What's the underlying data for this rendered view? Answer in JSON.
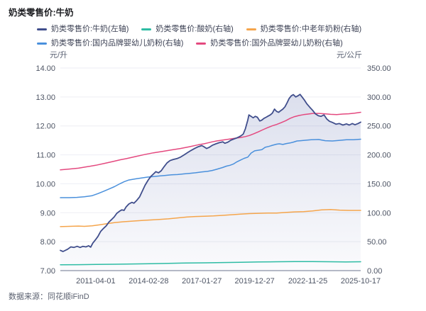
{
  "title": "奶类零售价:牛奶",
  "footer": {
    "source": "数据来源：同花顺iFinD"
  },
  "colors": {
    "grid_line": "#edeef4",
    "axis_line": "#b6bac6",
    "tick_text": "#4e5565",
    "legend_text": "#3e4356",
    "milk_navy": "#404e8c",
    "yogurt_teal": "#2ebca4",
    "elder_powder_orange": "#f5a54c",
    "domestic_infant_blue": "#4a90dc",
    "foreign_infant_pink": "#e4497f"
  },
  "chart_data": {
    "type": "line",
    "title": "奶类零售价:牛奶",
    "grid": true,
    "legend_position": "top",
    "area_gradient": [
      "rgba(97,112,176,0.25)",
      "rgba(97,112,176,0.03)"
    ],
    "left_axis": {
      "unit": "元/升",
      "min": 7,
      "max": 14,
      "tick_labels": [
        "14.00",
        "13.00",
        "12.00",
        "11.00",
        "10.00",
        "9.00",
        "8.00",
        "7.00"
      ]
    },
    "right_axis": {
      "unit": "元/公斤",
      "min": 0,
      "max": 350,
      "tick_labels": [
        "350.00",
        "300.00",
        "250.00",
        "200.00",
        "150.00",
        "100.00",
        "50.00",
        "0.00"
      ]
    },
    "x_axis": {
      "ticks": [
        {
          "label": "2011-04-01",
          "f": 0.118
        },
        {
          "label": "2014-02-28",
          "f": 0.294
        },
        {
          "label": "2017-01-27",
          "f": 0.471
        },
        {
          "label": "2019-12-27",
          "f": 0.647
        },
        {
          "label": "2022-11-25",
          "f": 0.824
        },
        {
          "label": "2025-10-17",
          "f": 1.0
        }
      ]
    },
    "series": [
      {
        "name": "奶类零售价:牛奶(左轴)",
        "axis": "left",
        "color": "#404e8c",
        "area": true,
        "points": [
          [
            0,
            7.7
          ],
          [
            0.009,
            7.66
          ],
          [
            0.024,
            7.74
          ],
          [
            0.035,
            7.82
          ],
          [
            0.045,
            7.8
          ],
          [
            0.056,
            7.84
          ],
          [
            0.066,
            7.8
          ],
          [
            0.075,
            7.84
          ],
          [
            0.085,
            7.82
          ],
          [
            0.094,
            7.86
          ],
          [
            0.101,
            7.81
          ],
          [
            0.108,
            7.95
          ],
          [
            0.118,
            8.08
          ],
          [
            0.125,
            8.18
          ],
          [
            0.134,
            8.35
          ],
          [
            0.144,
            8.46
          ],
          [
            0.153,
            8.55
          ],
          [
            0.162,
            8.68
          ],
          [
            0.172,
            8.78
          ],
          [
            0.179,
            8.85
          ],
          [
            0.188,
            8.98
          ],
          [
            0.198,
            9.06
          ],
          [
            0.205,
            9.1
          ],
          [
            0.212,
            9.08
          ],
          [
            0.219,
            9.2
          ],
          [
            0.228,
            9.3
          ],
          [
            0.238,
            9.36
          ],
          [
            0.245,
            9.33
          ],
          [
            0.254,
            9.42
          ],
          [
            0.264,
            9.55
          ],
          [
            0.273,
            9.75
          ],
          [
            0.282,
            9.95
          ],
          [
            0.292,
            10.12
          ],
          [
            0.301,
            10.25
          ],
          [
            0.311,
            10.35
          ],
          [
            0.318,
            10.42
          ],
          [
            0.327,
            10.38
          ],
          [
            0.336,
            10.45
          ],
          [
            0.346,
            10.6
          ],
          [
            0.355,
            10.72
          ],
          [
            0.365,
            10.8
          ],
          [
            0.376,
            10.84
          ],
          [
            0.388,
            10.87
          ],
          [
            0.4,
            10.92
          ],
          [
            0.412,
            11.0
          ],
          [
            0.424,
            11.08
          ],
          [
            0.435,
            11.15
          ],
          [
            0.447,
            11.22
          ],
          [
            0.459,
            11.28
          ],
          [
            0.471,
            11.32
          ],
          [
            0.478,
            11.28
          ],
          [
            0.487,
            11.22
          ],
          [
            0.496,
            11.26
          ],
          [
            0.506,
            11.33
          ],
          [
            0.518,
            11.38
          ],
          [
            0.529,
            11.42
          ],
          [
            0.541,
            11.45
          ],
          [
            0.548,
            11.4
          ],
          [
            0.558,
            11.44
          ],
          [
            0.567,
            11.5
          ],
          [
            0.576,
            11.54
          ],
          [
            0.586,
            11.58
          ],
          [
            0.595,
            11.62
          ],
          [
            0.602,
            11.66
          ],
          [
            0.609,
            11.72
          ],
          [
            0.616,
            11.9
          ],
          [
            0.624,
            12.2
          ],
          [
            0.628,
            12.38
          ],
          [
            0.635,
            12.33
          ],
          [
            0.642,
            12.28
          ],
          [
            0.649,
            12.33
          ],
          [
            0.656,
            12.3
          ],
          [
            0.664,
            12.17
          ],
          [
            0.671,
            12.2
          ],
          [
            0.678,
            12.26
          ],
          [
            0.685,
            12.3
          ],
          [
            0.692,
            12.34
          ],
          [
            0.699,
            12.38
          ],
          [
            0.706,
            12.44
          ],
          [
            0.713,
            12.58
          ],
          [
            0.72,
            12.5
          ],
          [
            0.727,
            12.47
          ],
          [
            0.734,
            12.53
          ],
          [
            0.741,
            12.58
          ],
          [
            0.748,
            12.66
          ],
          [
            0.755,
            12.8
          ],
          [
            0.762,
            12.95
          ],
          [
            0.769,
            13.04
          ],
          [
            0.776,
            13.08
          ],
          [
            0.784,
            13.0
          ],
          [
            0.791,
            13.04
          ],
          [
            0.798,
            13.09
          ],
          [
            0.805,
            13.0
          ],
          [
            0.812,
            12.9
          ],
          [
            0.821,
            12.76
          ],
          [
            0.831,
            12.64
          ],
          [
            0.84,
            12.54
          ],
          [
            0.849,
            12.42
          ],
          [
            0.859,
            12.35
          ],
          [
            0.868,
            12.33
          ],
          [
            0.878,
            12.38
          ],
          [
            0.887,
            12.24
          ],
          [
            0.896,
            12.16
          ],
          [
            0.906,
            12.12
          ],
          [
            0.918,
            12.06
          ],
          [
            0.929,
            12.08
          ],
          [
            0.941,
            12.03
          ],
          [
            0.953,
            12.07
          ],
          [
            0.962,
            12.03
          ],
          [
            0.972,
            12.08
          ],
          [
            0.981,
            12.04
          ],
          [
            0.991,
            12.08
          ],
          [
            1,
            12.13
          ]
        ]
      },
      {
        "name": "奶类零售价:酸奶(右轴)",
        "axis": "right",
        "color": "#2ebca4",
        "area": false,
        "points": [
          [
            0,
            10
          ],
          [
            0.06,
            10.3
          ],
          [
            0.12,
            10.6
          ],
          [
            0.18,
            11
          ],
          [
            0.24,
            11.5
          ],
          [
            0.3,
            12
          ],
          [
            0.36,
            12.6
          ],
          [
            0.42,
            13.1
          ],
          [
            0.48,
            13.5
          ],
          [
            0.54,
            14
          ],
          [
            0.6,
            14.4
          ],
          [
            0.66,
            14.9
          ],
          [
            0.72,
            15.3
          ],
          [
            0.78,
            15.7
          ],
          [
            0.84,
            15.6
          ],
          [
            0.9,
            15.3
          ],
          [
            0.95,
            15.1
          ],
          [
            1,
            15.3
          ]
        ]
      },
      {
        "name": "奶类零售价:中老年奶粉(右轴)",
        "axis": "right",
        "color": "#f5a54c",
        "area": false,
        "points": [
          [
            0,
            76
          ],
          [
            0.03,
            76.5
          ],
          [
            0.06,
            77
          ],
          [
            0.08,
            76.5
          ],
          [
            0.106,
            77.5
          ],
          [
            0.13,
            79
          ],
          [
            0.155,
            81
          ],
          [
            0.18,
            83
          ],
          [
            0.21,
            84.5
          ],
          [
            0.24,
            85.5
          ],
          [
            0.27,
            86.5
          ],
          [
            0.3,
            87.5
          ],
          [
            0.33,
            88.5
          ],
          [
            0.36,
            89.5
          ],
          [
            0.39,
            91
          ],
          [
            0.42,
            92.5
          ],
          [
            0.45,
            93.5
          ],
          [
            0.48,
            94
          ],
          [
            0.51,
            94.5
          ],
          [
            0.54,
            95.5
          ],
          [
            0.57,
            96.5
          ],
          [
            0.6,
            97.5
          ],
          [
            0.63,
            98.5
          ],
          [
            0.66,
            99
          ],
          [
            0.69,
            99.5
          ],
          [
            0.72,
            99.5
          ],
          [
            0.75,
            100.5
          ],
          [
            0.78,
            101.5
          ],
          [
            0.81,
            102
          ],
          [
            0.84,
            103
          ],
          [
            0.87,
            105
          ],
          [
            0.9,
            105.5
          ],
          [
            0.93,
            104.5
          ],
          [
            0.96,
            104
          ],
          [
            1,
            104
          ]
        ]
      },
      {
        "name": "奶类零售价:国内品牌婴幼儿奶粉(右轴)",
        "axis": "right",
        "color": "#4a90dc",
        "area": false,
        "points": [
          [
            0,
            126
          ],
          [
            0.03,
            126
          ],
          [
            0.055,
            126.5
          ],
          [
            0.08,
            127.5
          ],
          [
            0.106,
            129.5
          ],
          [
            0.125,
            133
          ],
          [
            0.144,
            137
          ],
          [
            0.162,
            141
          ],
          [
            0.18,
            145
          ],
          [
            0.198,
            150
          ],
          [
            0.212,
            153.5
          ],
          [
            0.228,
            156.5
          ],
          [
            0.25,
            158.5
          ],
          [
            0.27,
            160
          ],
          [
            0.29,
            161.5
          ],
          [
            0.31,
            162.5
          ],
          [
            0.33,
            163.5
          ],
          [
            0.35,
            164.5
          ],
          [
            0.37,
            165.5
          ],
          [
            0.39,
            166
          ],
          [
            0.41,
            167
          ],
          [
            0.43,
            168
          ],
          [
            0.45,
            169
          ],
          [
            0.47,
            170.5
          ],
          [
            0.49,
            171.5
          ],
          [
            0.506,
            173
          ],
          [
            0.52,
            175
          ],
          [
            0.54,
            178
          ],
          [
            0.553,
            180.5
          ],
          [
            0.565,
            182
          ],
          [
            0.576,
            184
          ],
          [
            0.588,
            188
          ],
          [
            0.6,
            191
          ],
          [
            0.612,
            194
          ],
          [
            0.624,
            196
          ],
          [
            0.635,
            203
          ],
          [
            0.647,
            207
          ],
          [
            0.66,
            208
          ],
          [
            0.671,
            209
          ],
          [
            0.682,
            213
          ],
          [
            0.694,
            214.5
          ],
          [
            0.706,
            216.5
          ],
          [
            0.72,
            218.5
          ],
          [
            0.729,
            219
          ],
          [
            0.741,
            218
          ],
          [
            0.753,
            219.5
          ],
          [
            0.765,
            220.5
          ],
          [
            0.776,
            222
          ],
          [
            0.788,
            224
          ],
          [
            0.8,
            224.5
          ],
          [
            0.812,
            225
          ],
          [
            0.835,
            226
          ],
          [
            0.86,
            226.5
          ],
          [
            0.882,
            224.5
          ],
          [
            0.906,
            224
          ],
          [
            0.93,
            225
          ],
          [
            0.953,
            226
          ],
          [
            0.976,
            226
          ],
          [
            1,
            227
          ]
        ]
      },
      {
        "name": "奶类零售价:国外品牌婴幼儿奶粉(右轴)",
        "axis": "right",
        "color": "#e4497f",
        "area": false,
        "points": [
          [
            0,
            174
          ],
          [
            0.03,
            175.5
          ],
          [
            0.06,
            177
          ],
          [
            0.09,
            179.5
          ],
          [
            0.118,
            182
          ],
          [
            0.15,
            185.5
          ],
          [
            0.175,
            188.5
          ],
          [
            0.2,
            191.5
          ],
          [
            0.22,
            193.5
          ],
          [
            0.25,
            197
          ],
          [
            0.28,
            200.5
          ],
          [
            0.31,
            203.5
          ],
          [
            0.34,
            206
          ],
          [
            0.37,
            208.5
          ],
          [
            0.4,
            211
          ],
          [
            0.43,
            214
          ],
          [
            0.46,
            217.5
          ],
          [
            0.478,
            219
          ],
          [
            0.49,
            220.5
          ],
          [
            0.506,
            222.5
          ],
          [
            0.52,
            224
          ],
          [
            0.54,
            225.5
          ],
          [
            0.56,
            227
          ],
          [
            0.58,
            228.5
          ],
          [
            0.6,
            230
          ],
          [
            0.616,
            231.5
          ],
          [
            0.63,
            233.5
          ],
          [
            0.645,
            236.5
          ],
          [
            0.66,
            240
          ],
          [
            0.675,
            243.5
          ],
          [
            0.69,
            247
          ],
          [
            0.705,
            250
          ],
          [
            0.72,
            252.5
          ],
          [
            0.735,
            255.5
          ],
          [
            0.75,
            259
          ],
          [
            0.765,
            263
          ],
          [
            0.78,
            266
          ],
          [
            0.795,
            268
          ],
          [
            0.81,
            269.5
          ],
          [
            0.825,
            270.5
          ],
          [
            0.84,
            271.5
          ],
          [
            0.86,
            271.5
          ],
          [
            0.88,
            271
          ],
          [
            0.9,
            270
          ],
          [
            0.92,
            269.5
          ],
          [
            0.94,
            270.5
          ],
          [
            0.96,
            271
          ],
          [
            0.98,
            272
          ],
          [
            1,
            273.5
          ]
        ]
      }
    ]
  }
}
